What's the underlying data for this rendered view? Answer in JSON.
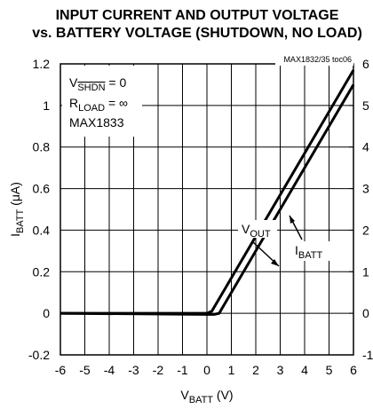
{
  "chart_data": {
    "type": "line",
    "title": [
      "INPUT CURRENT AND OUTPUT VOLTAGE",
      "vs. BATTERY VOLTAGE (SHUTDOWN, NO LOAD)"
    ],
    "code": "MAX1832/35 toc06",
    "conditions": [
      {
        "main": "V",
        "sub": "SHDN",
        "rest": " = 0"
      },
      {
        "main": "R",
        "sub": "LOAD",
        "rest": " = ∞"
      },
      {
        "main": "MAX1833"
      }
    ],
    "xlabel": {
      "main": "V",
      "sub": "BATT",
      "rest": " (V)"
    },
    "ylabel": {
      "main": "I",
      "sub": "BATT",
      "rest": " (μA)"
    },
    "xlim": [
      -6,
      6
    ],
    "xticks": [
      -6,
      -5,
      -4,
      -3,
      -2,
      -1,
      0,
      1,
      2,
      3,
      4,
      5,
      6
    ],
    "ylim": [
      -0.2,
      1.2
    ],
    "yticks": [
      -0.2,
      0,
      0.2,
      0.4,
      0.6,
      0.8,
      1.0,
      1.2
    ],
    "y2lim": [
      -1,
      6
    ],
    "y2ticks": [
      -1,
      0,
      1,
      2,
      3,
      4,
      5,
      6
    ],
    "grid": true,
    "series": [
      {
        "name": {
          "main": "V",
          "sub": "OUT"
        },
        "axis": "y2",
        "color": "#000000",
        "x": [
          -6,
          -1,
          0,
          0.2,
          6
        ],
        "values": [
          0,
          0,
          0,
          0.05,
          5.85
        ]
      },
      {
        "name": {
          "main": "I",
          "sub": "BATT"
        },
        "color": "#000000",
        "x": [
          -6,
          0,
          0.3,
          0.5,
          6
        ],
        "values": [
          0,
          -0.005,
          -0.005,
          0,
          1.1
        ]
      }
    ]
  }
}
